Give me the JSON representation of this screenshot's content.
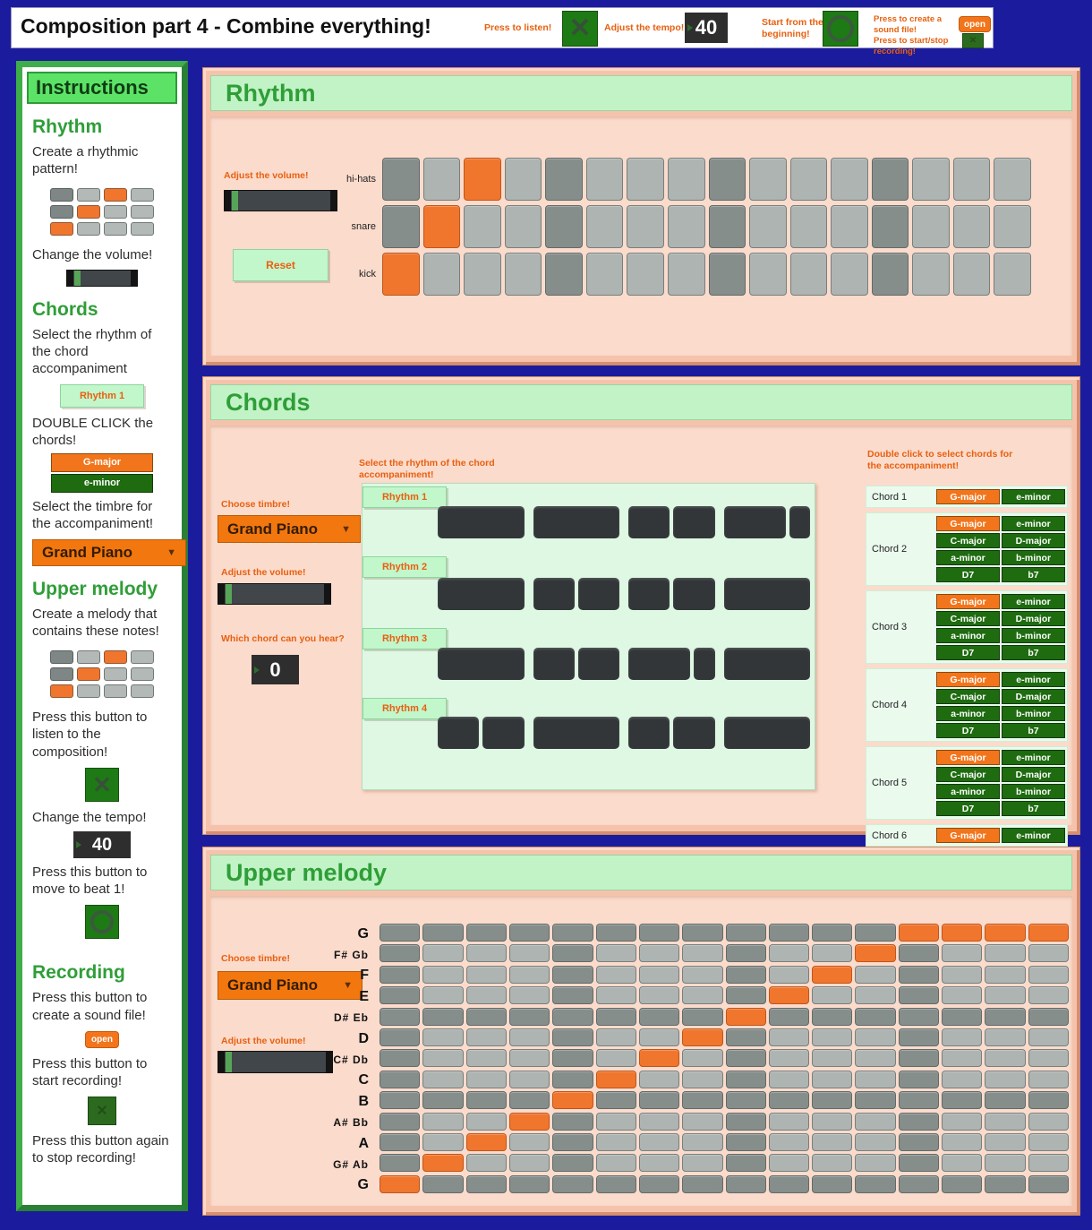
{
  "colors": {
    "background": "#1b1b9e",
    "accent_orange": "#f0752a",
    "dark_green_button": "#1e6b10",
    "toggle_green": "#1e7a14",
    "light_green_strip": "#c2f3c7",
    "panel_salmon": "#f5c3ab",
    "panel_pink": "#fbdbcc",
    "title_green": "#2f9e38",
    "cell_light": "#adb4b2",
    "cell_dark": "#868e8c",
    "cell_orange": "#f0762e",
    "note_bar_dark": "#323638"
  },
  "header": {
    "title": "Composition part 4 - Combine everything!",
    "listen_label": "Press to listen!",
    "tempo_label": "Adjust the tempo!",
    "tempo_value": "40",
    "start_label": "Start from the beginning!",
    "record_label_1": "Press to create a sound file!",
    "record_label_2": "Press to start/stop recording!",
    "open_label": "open"
  },
  "sidebar": {
    "title": "Instructions",
    "rhythm_heading": "Rhythm",
    "rhythm_p1": "Create a rhythmic pattern!",
    "rhythm_p2": "Change the volume!",
    "chords_heading": "Chords",
    "chords_p1": "Select the rhythm of the chord accompaniment",
    "rhythm_button_label": "Rhythm 1",
    "chords_p2": "DOUBLE CLICK the chords!",
    "chord_major_label": "G-major",
    "chord_minor_label": "e-minor",
    "chords_p3": "Select the timbre for the accompaniment!",
    "timbre_value": "Grand Piano",
    "melody_heading": "Upper melody",
    "melody_p1": "Create a melody that contains these notes!",
    "melody_p2": "Press this button to listen to the composition!",
    "melody_p3": "Change the tempo!",
    "tempo_value": "40",
    "melody_p4": "Press this button to move to beat 1!",
    "recording_heading": "Recording",
    "recording_p1": "Press this button to create a sound file!",
    "open_label": "open",
    "recording_p2": "Press this button to start recording!",
    "recording_p3": "Press this button again to stop recording!",
    "mini_grid": [
      [
        "dark",
        "light",
        "orange",
        "light"
      ],
      [
        "dark",
        "orange",
        "light",
        "light"
      ],
      [
        "orange",
        "light",
        "light",
        "light"
      ]
    ]
  },
  "rhythm_panel": {
    "title": "Rhythm",
    "volume_label": "Adjust the volume!",
    "reset_label": "Reset",
    "grid": {
      "columns": 16,
      "beat_columns": [
        1,
        5,
        9,
        13
      ],
      "rows": [
        {
          "label": "hi-hats",
          "orange": [
            3
          ]
        },
        {
          "label": "snare",
          "orange": [
            2
          ]
        },
        {
          "label": "kick",
          "orange": [
            1
          ]
        }
      ]
    }
  },
  "chords_panel": {
    "title": "Chords",
    "select_rhythm_label": "Select the rhythm of the chord accompaniment!",
    "choose_timbre_label": "Choose timbre!",
    "timbre_value": "Grand Piano",
    "volume_label": "Adjust the volume!",
    "which_chord_label": "Which chord can you hear?",
    "which_chord_value": "0",
    "rhythms": [
      {
        "label": "Rhythm 1",
        "bar_groups": [
          [
            2
          ],
          [
            2
          ],
          [
            1,
            1
          ],
          [
            1.5,
            0.5
          ]
        ]
      },
      {
        "label": "Rhythm 2",
        "bar_groups": [
          [
            2
          ],
          [
            1,
            1
          ],
          [
            1,
            1
          ],
          [
            2
          ]
        ]
      },
      {
        "label": "Rhythm 3",
        "bar_groups": [
          [
            2
          ],
          [
            1,
            1
          ],
          [
            1.5,
            0.5
          ],
          [
            2
          ]
        ]
      },
      {
        "label": "Rhythm 4",
        "bar_groups": [
          [
            1,
            1
          ],
          [
            2
          ],
          [
            1,
            1
          ],
          [
            2
          ]
        ]
      }
    ],
    "double_click_label": "Double click to select chords for the accompaniment!",
    "selected_chord": "G-major",
    "chord_groups": [
      {
        "label": "Chord 1",
        "rows": [
          [
            "G-major",
            "e-minor"
          ]
        ]
      },
      {
        "label": "Chord 2",
        "rows": [
          [
            "G-major",
            "e-minor"
          ],
          [
            "C-major",
            "D-major"
          ],
          [
            "a-minor",
            "b-minor"
          ],
          [
            "D7",
            "b7"
          ]
        ]
      },
      {
        "label": "Chord 3",
        "rows": [
          [
            "G-major",
            "e-minor"
          ],
          [
            "C-major",
            "D-major"
          ],
          [
            "a-minor",
            "b-minor"
          ],
          [
            "D7",
            "b7"
          ]
        ]
      },
      {
        "label": "Chord 4",
        "rows": [
          [
            "G-major",
            "e-minor"
          ],
          [
            "C-major",
            "D-major"
          ],
          [
            "a-minor",
            "b-minor"
          ],
          [
            "D7",
            "b7"
          ]
        ]
      },
      {
        "label": "Chord 5",
        "rows": [
          [
            "G-major",
            "e-minor"
          ],
          [
            "C-major",
            "D-major"
          ],
          [
            "a-minor",
            "b-minor"
          ],
          [
            "D7",
            "b7"
          ]
        ]
      },
      {
        "label": "Chord 6",
        "rows": [
          [
            "G-major",
            "e-minor"
          ]
        ]
      }
    ]
  },
  "melody_panel": {
    "title": "Upper melody",
    "choose_timbre_label": "Choose timbre!",
    "timbre_value": "Grand Piano",
    "volume_label": "Adjust the volume!",
    "grid": {
      "columns": 16,
      "beat_columns": [
        1,
        5,
        9,
        13
      ],
      "rows": [
        {
          "label": "G",
          "full_dark": true,
          "orange": [
            13,
            14,
            15,
            16
          ]
        },
        {
          "label": "F# Gb",
          "orange": [
            12
          ]
        },
        {
          "label": "F",
          "orange": [
            11
          ]
        },
        {
          "label": "E",
          "orange": [
            10
          ]
        },
        {
          "label": "D# Eb",
          "full_dark": true,
          "orange": [
            9
          ]
        },
        {
          "label": "D",
          "orange": [
            8
          ]
        },
        {
          "label": "C# Db",
          "orange": [
            7
          ]
        },
        {
          "label": "C",
          "orange": [
            6
          ]
        },
        {
          "label": "B",
          "full_dark": true,
          "orange": [
            5
          ]
        },
        {
          "label": "A# Bb",
          "orange": [
            4
          ]
        },
        {
          "label": "A",
          "orange": [
            3
          ]
        },
        {
          "label": "G# Ab",
          "orange": [
            2
          ]
        },
        {
          "label": "G",
          "full_dark": true,
          "orange": [
            1
          ]
        }
      ]
    }
  }
}
